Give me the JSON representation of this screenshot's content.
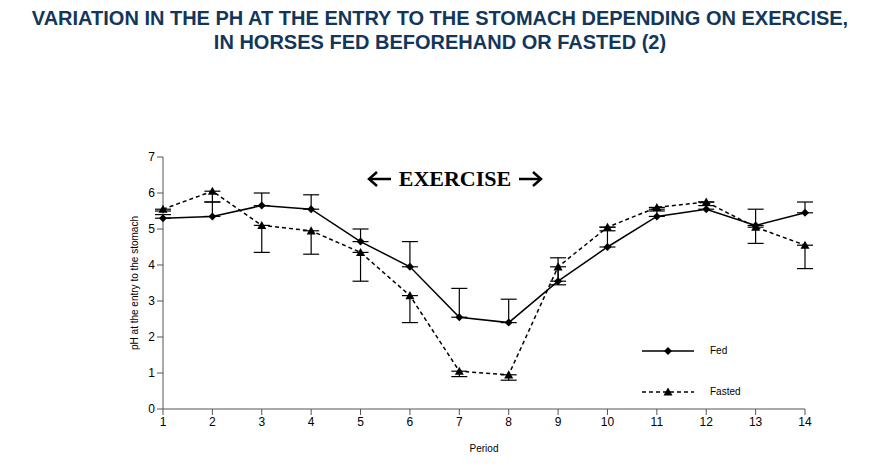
{
  "chart_data": {
    "type": "line",
    "title": "VARIATION IN THE PH AT THE ENTRY TO THE STOMACH DEPENDING ON EXERCISE, IN HORSES FED BEFOREHAND OR FASTED (2)",
    "x_label": "Period",
    "y_label": "pH at the entry to the stomach",
    "annotation": "EXERCISE",
    "categories": [
      1,
      2,
      3,
      4,
      5,
      6,
      7,
      8,
      9,
      10,
      11,
      12,
      13,
      14
    ],
    "ylim": [
      0,
      7
    ],
    "yticks": [
      0,
      1,
      2,
      3,
      4,
      5,
      6,
      7
    ],
    "grid": false,
    "legend": "lower right",
    "series": [
      {
        "name": "Fed",
        "color": "#000000",
        "marker": "diamond",
        "line_style": "solid",
        "values": [
          5.3,
          5.35,
          5.65,
          5.55,
          4.65,
          3.95,
          2.55,
          2.4,
          3.55,
          4.5,
          5.35,
          5.55,
          5.1,
          5.45
        ],
        "error_upper": [
          0.1,
          0.4,
          0.35,
          0.4,
          0.35,
          0.7,
          0.8,
          0.65,
          0.65,
          0.45,
          0.15,
          0.2,
          0.45,
          0.3
        ]
      },
      {
        "name": "Fasted",
        "color": "#000000",
        "marker": "triangle",
        "line_style": "dashed",
        "values": [
          5.55,
          6.05,
          5.1,
          4.95,
          4.35,
          3.15,
          1.05,
          0.95,
          3.95,
          5.05,
          5.6,
          5.75,
          5.05,
          4.55
        ],
        "error_lower": [
          0.05,
          0.3,
          0.75,
          0.65,
          0.8,
          0.75,
          0.15,
          0.15,
          0.5,
          0.0,
          0.05,
          0.1,
          0.45,
          0.65
        ]
      }
    ]
  }
}
